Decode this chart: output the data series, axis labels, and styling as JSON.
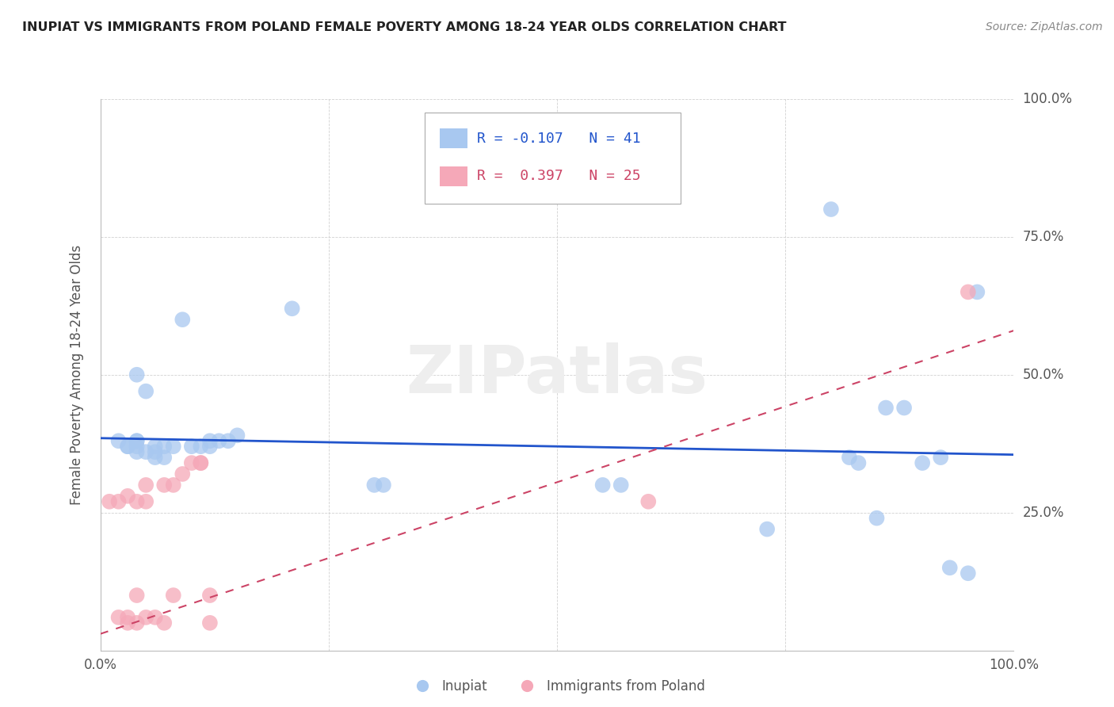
{
  "title": "INUPIAT VS IMMIGRANTS FROM POLAND FEMALE POVERTY AMONG 18-24 YEAR OLDS CORRELATION CHART",
  "source": "Source: ZipAtlas.com",
  "ylabel": "Female Poverty Among 18-24 Year Olds",
  "xlim": [
    0,
    1
  ],
  "ylim": [
    0,
    1
  ],
  "inupiat_R": -0.107,
  "inupiat_N": 41,
  "poland_R": 0.397,
  "poland_N": 25,
  "inupiat_color": "#a8c8f0",
  "poland_color": "#f5a8b8",
  "inupiat_line_color": "#2255cc",
  "poland_line_color": "#cc4466",
  "inupiat_line_x0": 0.0,
  "inupiat_line_y0": 0.385,
  "inupiat_line_x1": 1.0,
  "inupiat_line_y1": 0.355,
  "poland_line_x0": 0.0,
  "poland_line_y0": 0.03,
  "poland_line_x1": 1.0,
  "poland_line_y1": 0.58,
  "inupiat_x": [
    0.02,
    0.03,
    0.03,
    0.04,
    0.04,
    0.04,
    0.04,
    0.04,
    0.05,
    0.05,
    0.06,
    0.06,
    0.06,
    0.07,
    0.07,
    0.08,
    0.09,
    0.1,
    0.11,
    0.12,
    0.12,
    0.13,
    0.14,
    0.15,
    0.21,
    0.3,
    0.31,
    0.55,
    0.57,
    0.73,
    0.8,
    0.82,
    0.83,
    0.85,
    0.86,
    0.88,
    0.9,
    0.92,
    0.93,
    0.95,
    0.96
  ],
  "inupiat_y": [
    0.38,
    0.37,
    0.37,
    0.36,
    0.37,
    0.38,
    0.38,
    0.5,
    0.36,
    0.47,
    0.35,
    0.36,
    0.37,
    0.35,
    0.37,
    0.37,
    0.6,
    0.37,
    0.37,
    0.37,
    0.38,
    0.38,
    0.38,
    0.39,
    0.62,
    0.3,
    0.3,
    0.3,
    0.3,
    0.22,
    0.8,
    0.35,
    0.34,
    0.24,
    0.44,
    0.44,
    0.34,
    0.35,
    0.15,
    0.14,
    0.65
  ],
  "poland_x": [
    0.01,
    0.02,
    0.02,
    0.03,
    0.03,
    0.03,
    0.04,
    0.04,
    0.04,
    0.05,
    0.05,
    0.05,
    0.06,
    0.07,
    0.07,
    0.08,
    0.08,
    0.09,
    0.1,
    0.11,
    0.11,
    0.12,
    0.12,
    0.6,
    0.95
  ],
  "poland_y": [
    0.27,
    0.06,
    0.27,
    0.05,
    0.06,
    0.28,
    0.05,
    0.1,
    0.27,
    0.06,
    0.27,
    0.3,
    0.06,
    0.05,
    0.3,
    0.1,
    0.3,
    0.32,
    0.34,
    0.34,
    0.34,
    0.1,
    0.05,
    0.27,
    0.65
  ]
}
